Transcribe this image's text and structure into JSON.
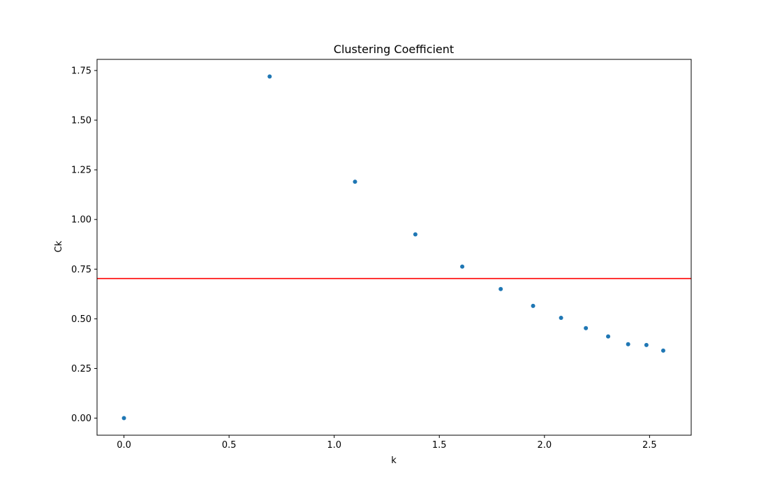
{
  "chart_data": {
    "type": "scatter",
    "title": "Clustering Coefficient",
    "xlabel": "k",
    "ylabel": "Ck",
    "xlim": [
      -0.128,
      2.698
    ],
    "ylim": [
      -0.086,
      1.806
    ],
    "xticks": [
      0.0,
      0.5,
      1.0,
      1.5,
      2.0,
      2.5
    ],
    "xtick_labels": [
      "0.0",
      "0.5",
      "1.0",
      "1.5",
      "2.0",
      "2.5"
    ],
    "yticks": [
      0.0,
      0.25,
      0.5,
      0.75,
      1.0,
      1.25,
      1.5,
      1.75
    ],
    "ytick_labels": [
      "0.00",
      "0.25",
      "0.50",
      "0.75",
      "1.00",
      "1.25",
      "1.50",
      "1.75"
    ],
    "grid": false,
    "series": [
      {
        "color": "#1f77b4",
        "points": [
          {
            "x": 0.0,
            "y": 0.0
          },
          {
            "x": 0.693,
            "y": 1.72
          },
          {
            "x": 1.099,
            "y": 1.19
          },
          {
            "x": 1.386,
            "y": 0.925
          },
          {
            "x": 1.609,
            "y": 0.763
          },
          {
            "x": 1.792,
            "y": 0.65
          },
          {
            "x": 1.946,
            "y": 0.565
          },
          {
            "x": 2.079,
            "y": 0.505
          },
          {
            "x": 2.197,
            "y": 0.453
          },
          {
            "x": 2.303,
            "y": 0.411
          },
          {
            "x": 2.398,
            "y": 0.372
          },
          {
            "x": 2.485,
            "y": 0.368
          },
          {
            "x": 2.565,
            "y": 0.34
          }
        ]
      }
    ],
    "reference_lines": [
      {
        "orientation": "horizontal",
        "y": 0.703,
        "color": "#ff0000"
      }
    ]
  }
}
